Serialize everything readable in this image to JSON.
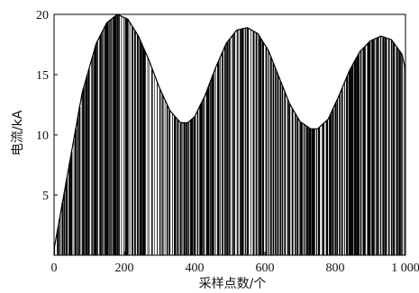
{
  "chart_data": {
    "type": "line",
    "title": "",
    "xlabel": "采样点数/个",
    "ylabel": "电流/kA",
    "xlim": [
      0,
      1000
    ],
    "ylim": [
      0,
      20
    ],
    "x_ticks": [
      0,
      200,
      400,
      600,
      800,
      1000
    ],
    "x_tick_labels": [
      "0",
      "200",
      "400",
      "600",
      "800",
      "1 000"
    ],
    "y_ticks": [
      5,
      10,
      15,
      20
    ],
    "y_tick_labels": [
      "5",
      "10",
      "15",
      "20"
    ],
    "grid": false,
    "legend": "none",
    "envelope": {
      "x": [
        0,
        40,
        80,
        120,
        150,
        180,
        210,
        240,
        270,
        300,
        330,
        360,
        380,
        400,
        430,
        460,
        490,
        520,
        550,
        580,
        610,
        640,
        670,
        700,
        730,
        750,
        780,
        810,
        840,
        870,
        900,
        930,
        960,
        990,
        1000
      ],
      "y": [
        0.5,
        7.0,
        13.5,
        17.6,
        19.3,
        20.0,
        19.6,
        18.2,
        16.2,
        13.9,
        12.0,
        11.0,
        11.0,
        11.5,
        13.3,
        15.6,
        17.6,
        18.7,
        18.9,
        18.4,
        17.0,
        14.8,
        12.6,
        11.1,
        10.5,
        10.5,
        11.3,
        13.2,
        15.3,
        16.9,
        17.8,
        18.2,
        17.9,
        16.7,
        15.4
      ]
    },
    "sampled_signal": {
      "points": 1000,
      "description_visible": "dense vertical sample lines under envelope"
    }
  }
}
